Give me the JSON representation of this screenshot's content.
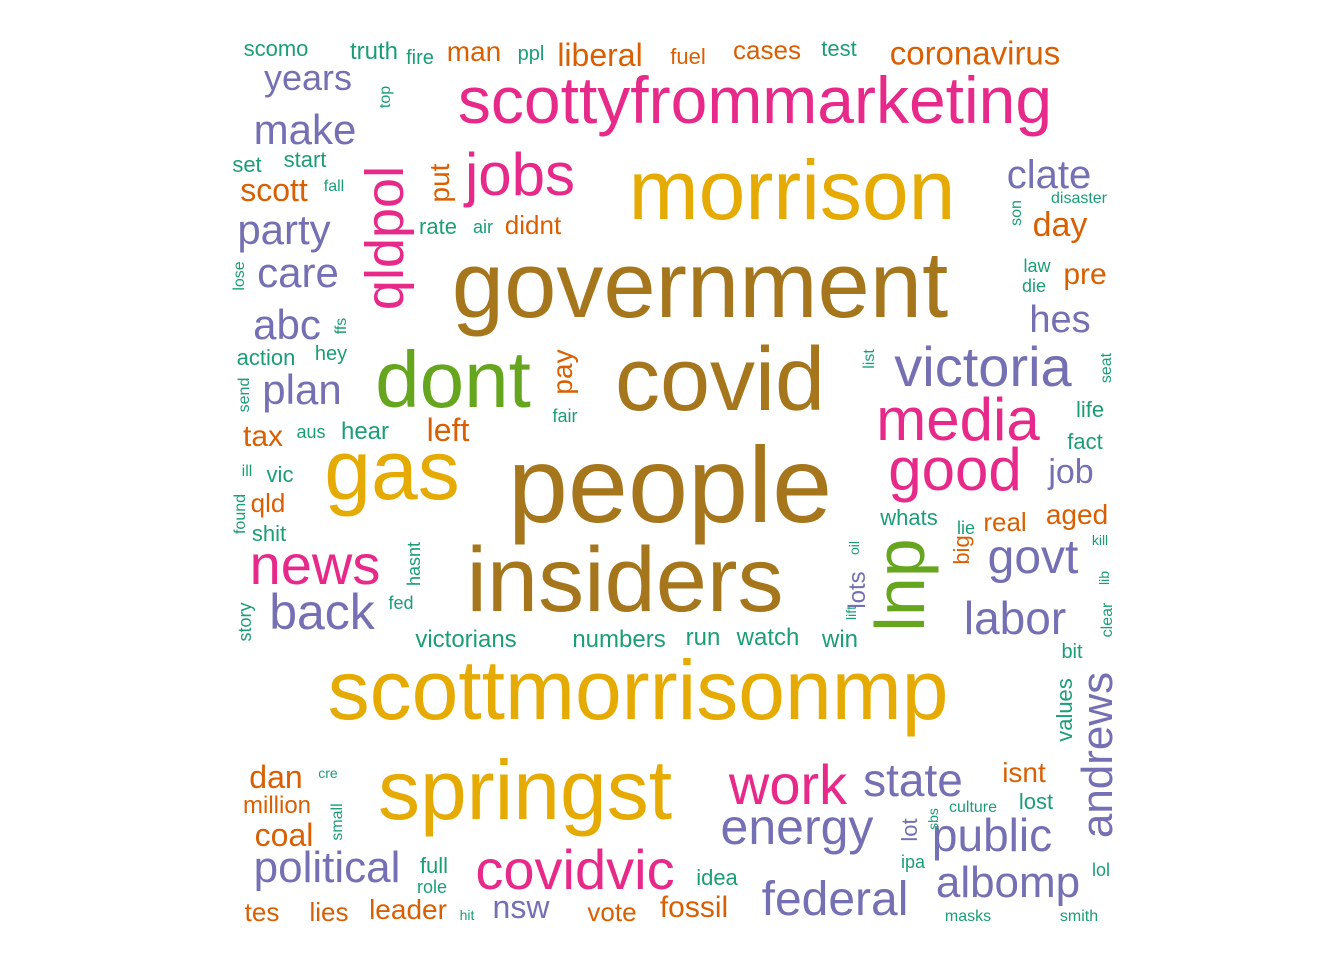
{
  "palette": [
    "#1B9E77",
    "#D95F02",
    "#7570B3",
    "#E7298A",
    "#66A61E",
    "#E6AB02",
    "#A6761D"
  ],
  "words": [
    "people",
    "insiders",
    "government",
    "covid",
    "scottmorrisonmp",
    "gas",
    "springst",
    "morrison",
    "scottyfrommarketing",
    "dont",
    "lnp",
    "media",
    "good",
    "covidvic",
    "victoria",
    "news",
    "work",
    "qldpol",
    "jobs",
    "energy",
    "back",
    "state",
    "labor",
    "federal",
    "govt",
    "public",
    "andrews",
    "albomp",
    "political",
    "clate",
    "plan",
    "make",
    "party",
    "abc",
    "care",
    "years",
    "coronavirus",
    "liberal",
    "hes",
    "scott",
    "job",
    "day",
    "pre",
    "left",
    "pay",
    "put",
    "dan",
    "coal",
    "aged",
    "isnt",
    "lots",
    "big",
    "real",
    "tax",
    "leader",
    "cases",
    "tes",
    "lies",
    "vote",
    "fossil",
    "nsw",
    "man",
    "qld",
    "truth",
    "scomo",
    "test",
    "fuel",
    "victorians",
    "numbers",
    "run",
    "watch",
    "win",
    "values",
    "million",
    "lost",
    "lot",
    "whats",
    "hear",
    "action",
    "hey",
    "start",
    "set",
    "rate",
    "didnt",
    "ppl",
    "fire",
    "life",
    "fact",
    "full",
    "role",
    "idea",
    "vic",
    "shit",
    "fair",
    "air",
    "aus",
    "bit",
    "fed",
    "send",
    "story",
    "found",
    "ill",
    "lose",
    "fall",
    "top",
    "ffs",
    "hasnt",
    "oil",
    "lift",
    "list",
    "seat",
    "son",
    "law",
    "die",
    "disaster",
    "kill",
    "clear",
    "lib",
    "lie",
    "cre",
    "small",
    "culture",
    "sbs",
    "ipa",
    "lol",
    "masks",
    "smith",
    "hit"
  ]
}
